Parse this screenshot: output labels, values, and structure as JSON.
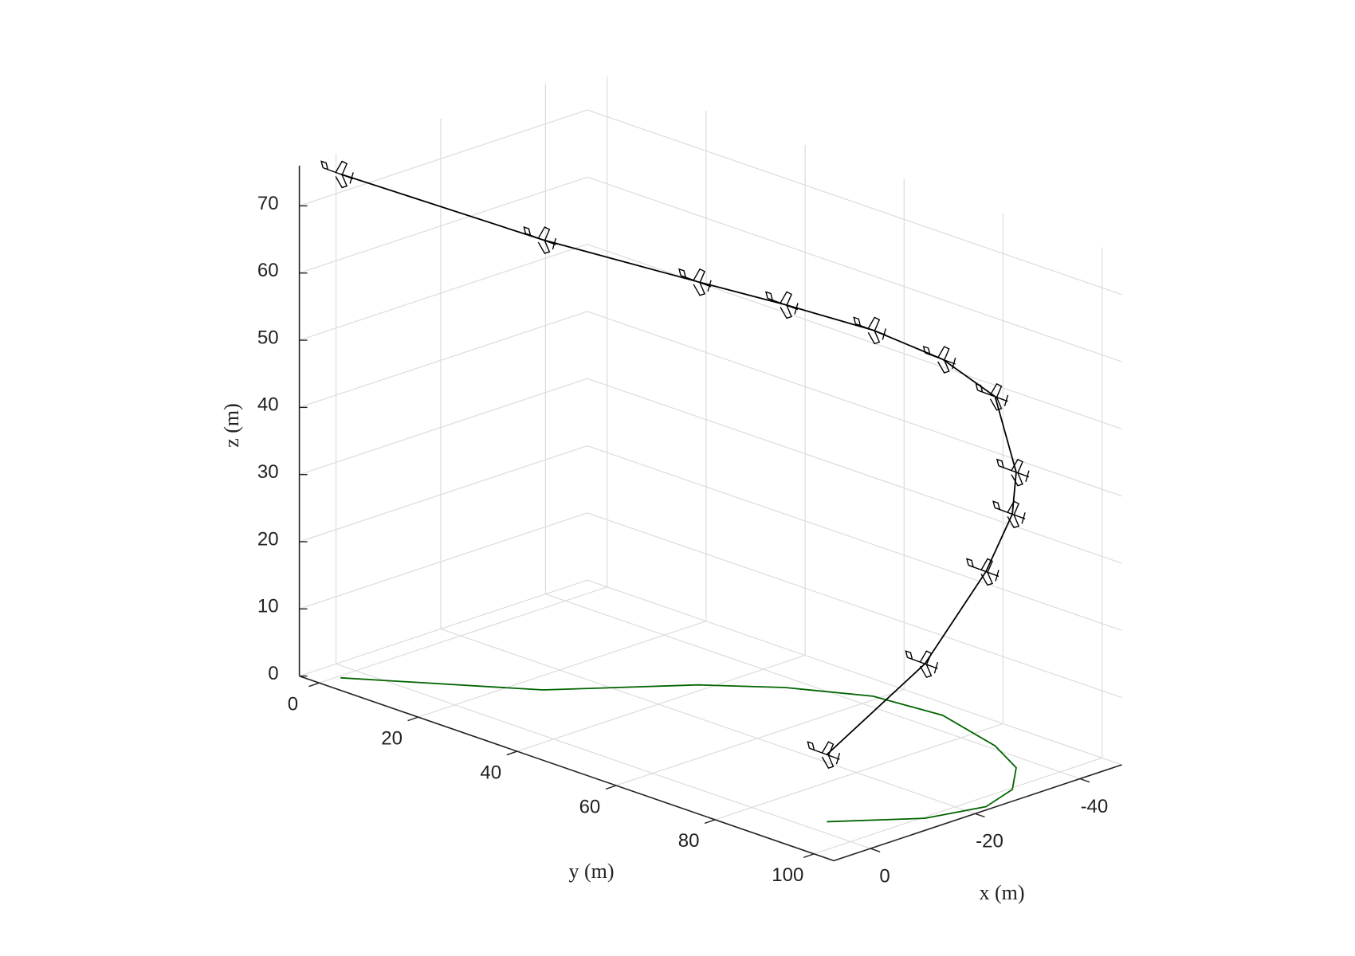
{
  "chart_data": {
    "type": "line3d",
    "x": [
      3.5,
      -12.8,
      -29.3,
      -37,
      -43.1,
      -44.5,
      -41,
      -36.9,
      -30.4,
      -23,
      -13.8,
      -3.3
    ],
    "y": [
      0.6,
      24.3,
      38.2,
      47.6,
      58.9,
      71.5,
      85.8,
      94.4,
      100.5,
      103,
      100.4,
      91.7
    ],
    "z": [
      75,
      67,
      60,
      57,
      54.5,
      53,
      52,
      44,
      41,
      35,
      23,
      10
    ],
    "xlim": [
      -48,
      7
    ],
    "ylim": [
      -4,
      104
    ],
    "zlim": [
      0,
      76
    ],
    "xticks": [
      -40,
      -20,
      0
    ],
    "yticks": [
      0,
      20,
      40,
      60,
      80,
      100
    ],
    "zticks": [
      0,
      10,
      20,
      30,
      40,
      50,
      60,
      70
    ],
    "xlabel": "x (m)",
    "ylabel": "y (m)",
    "zlabel": "z (m)",
    "grid": true,
    "trajectory_color": "#000000",
    "ground_track_color": "#006400"
  }
}
